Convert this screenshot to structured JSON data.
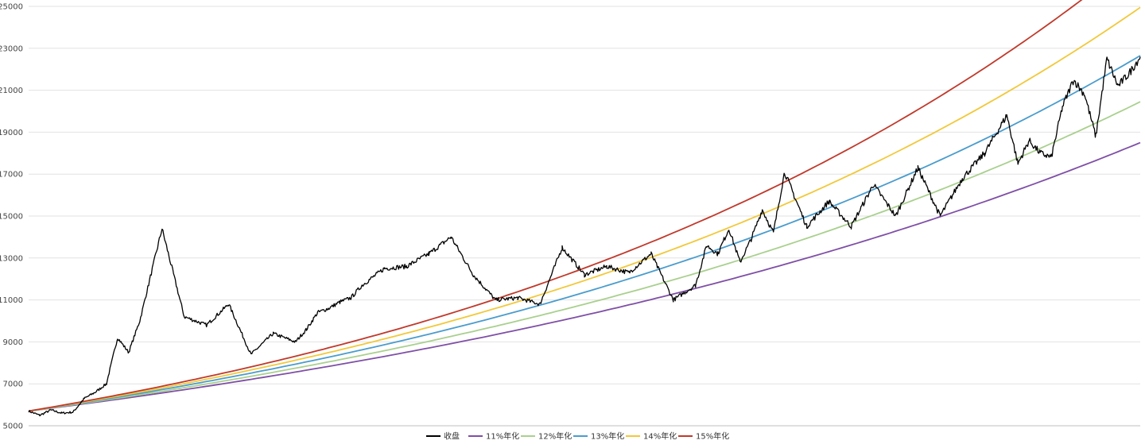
{
  "chart_data": {
    "type": "line",
    "title": "",
    "xlabel": "",
    "ylabel": "",
    "ylim": [
      5000,
      25000
    ],
    "yticks": [
      5000,
      7000,
      9000,
      11000,
      13000,
      15000,
      17000,
      19000,
      21000,
      23000,
      25000
    ],
    "grid": true,
    "legend_position": "bottom",
    "x_periods": 100,
    "close_series": {
      "name": "收盘",
      "color": "#000000",
      "x": [
        0,
        1,
        2,
        3,
        4,
        5,
        6,
        7,
        8,
        9,
        10,
        12,
        14,
        16,
        18,
        20,
        22,
        24,
        25,
        26,
        27,
        28,
        29,
        30,
        32,
        34,
        36,
        38,
        40,
        42,
        44,
        46,
        48,
        50,
        52,
        54,
        56,
        58,
        60,
        61,
        62,
        63,
        64,
        65,
        66,
        67,
        68,
        70,
        72,
        74,
        76,
        78,
        80,
        82,
        84,
        86,
        88,
        89,
        90,
        91,
        92,
        93,
        94,
        95,
        96,
        97,
        98,
        99,
        100
      ],
      "values": [
        5700,
        5500,
        5750,
        5600,
        5650,
        6300,
        6600,
        7000,
        9200,
        8500,
        10000,
        14400,
        10200,
        9800,
        10800,
        8400,
        9400,
        9000,
        9600,
        10400,
        10600,
        10900,
        11100,
        11700,
        12500,
        12600,
        13200,
        14000,
        12200,
        11000,
        11100,
        10800,
        13500,
        12200,
        12600,
        12300,
        13200,
        11000,
        11700,
        13600,
        13200,
        14400,
        12800,
        13900,
        15300,
        14200,
        17100,
        14500,
        15700,
        14500,
        16500,
        15000,
        17300,
        15000,
        16800,
        18000,
        19800,
        17500,
        18600,
        18000,
        17800,
        20200,
        21500,
        20800,
        18800,
        22500,
        21200,
        21800,
        22600
      ]
    },
    "annual_growth_lines": [
      {
        "name": "11%年化",
        "rate": 0.11,
        "color": "#7f4fa6"
      },
      {
        "name": "12%年化",
        "rate": 0.12,
        "color": "#a9d08e"
      },
      {
        "name": "13%年化",
        "rate": 0.13,
        "color": "#4a9ccd"
      },
      {
        "name": "14%年化",
        "rate": 0.14,
        "color": "#f2c83a"
      },
      {
        "name": "15%年化",
        "rate": 0.15,
        "color": "#c0392b"
      }
    ],
    "growth_start_value": 5700,
    "growth_end_values": [
      18500,
      20450,
      22650,
      24950,
      27500
    ],
    "legend": [
      "收盘",
      "11%年化",
      "12%年化",
      "13%年化",
      "14%年化",
      "15%年化"
    ]
  }
}
